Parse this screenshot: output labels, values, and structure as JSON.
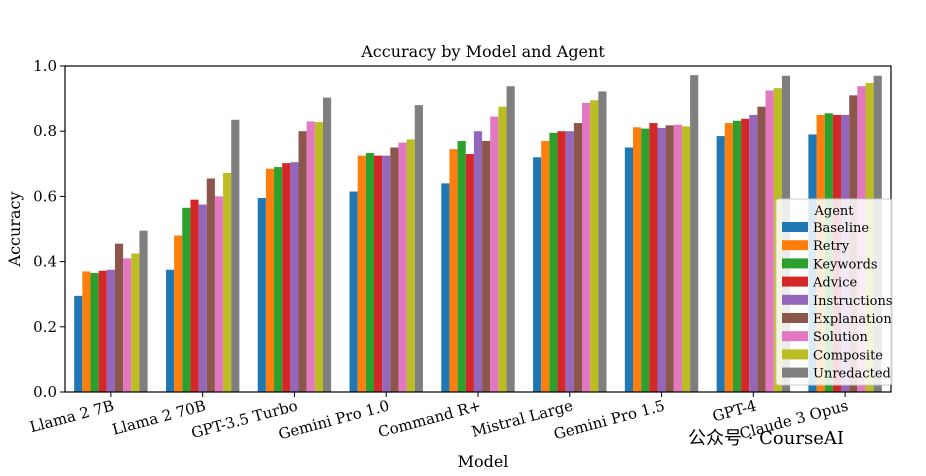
{
  "watermark": "公众号 · CourseAI",
  "chart_data": {
    "type": "bar",
    "title": "Accuracy by Model and Agent",
    "xlabel": "Model",
    "ylabel": "Accuracy",
    "ylim": [
      0,
      1.0
    ],
    "yticks": [
      "0.0",
      "0.2",
      "0.4",
      "0.6",
      "0.8",
      "1.0"
    ],
    "legend_title": "Agent",
    "legend_position": "lower-right",
    "categories": [
      "Llama 2 7B",
      "Llama 2 70B",
      "GPT-3.5 Turbo",
      "Gemini Pro 1.0",
      "Command R+",
      "Mistral Large",
      "Gemini Pro 1.5",
      "GPT-4",
      "Claude 3 Opus"
    ],
    "series": [
      {
        "name": "Baseline",
        "color": "#1f77b4",
        "values": [
          0.295,
          0.375,
          0.595,
          0.615,
          0.64,
          0.72,
          0.75,
          0.785,
          0.79
        ]
      },
      {
        "name": "Retry",
        "color": "#ff7f0e",
        "values": [
          0.37,
          0.48,
          0.685,
          0.725,
          0.745,
          0.77,
          0.812,
          0.825,
          0.85
        ]
      },
      {
        "name": "Keywords",
        "color": "#2ca02c",
        "values": [
          0.365,
          0.565,
          0.69,
          0.733,
          0.77,
          0.795,
          0.808,
          0.832,
          0.855
        ]
      },
      {
        "name": "Advice",
        "color": "#d62728",
        "values": [
          0.372,
          0.59,
          0.702,
          0.725,
          0.73,
          0.8,
          0.825,
          0.838,
          0.85
        ]
      },
      {
        "name": "Instructions",
        "color": "#9467bd",
        "values": [
          0.375,
          0.575,
          0.705,
          0.725,
          0.8,
          0.8,
          0.81,
          0.85,
          0.85
        ]
      },
      {
        "name": "Explanation",
        "color": "#8c564b",
        "values": [
          0.455,
          0.655,
          0.8,
          0.75,
          0.77,
          0.825,
          0.818,
          0.875,
          0.91
        ]
      },
      {
        "name": "Solution",
        "color": "#e377c2",
        "values": [
          0.41,
          0.6,
          0.83,
          0.765,
          0.845,
          0.887,
          0.82,
          0.925,
          0.938
        ]
      },
      {
        "name": "Composite",
        "color": "#bcbd22",
        "values": [
          0.425,
          0.672,
          0.828,
          0.775,
          0.875,
          0.895,
          0.815,
          0.932,
          0.948
        ]
      },
      {
        "name": "Unredacted",
        "color": "#7f7f7f",
        "values": [
          0.495,
          0.835,
          0.903,
          0.88,
          0.938,
          0.922,
          0.972,
          0.97,
          0.97
        ]
      }
    ]
  }
}
